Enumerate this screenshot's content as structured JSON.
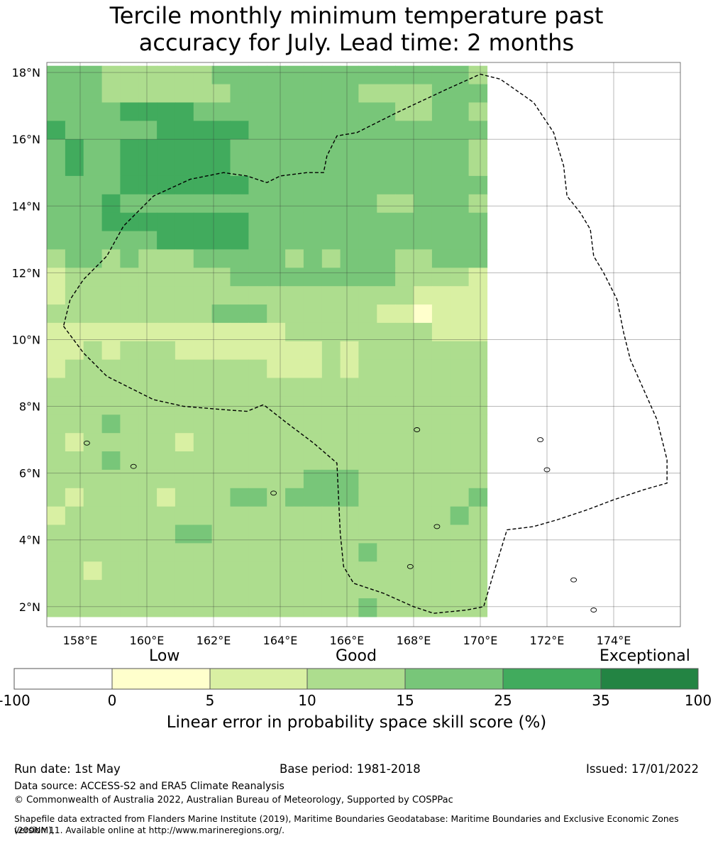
{
  "title": {
    "line1": "Tercile monthly minimum temperature past",
    "line2": "accuracy for July. Lead time: 2 months"
  },
  "map": {
    "lat_labels": [
      "18°N",
      "16°N",
      "14°N",
      "12°N",
      "10°N",
      "8°N",
      "6°N",
      "4°N",
      "2°N"
    ],
    "lon_labels": [
      "158°E",
      "160°E",
      "162°E",
      "164°E",
      "166°E",
      "168°E",
      "170°E",
      "172°E",
      "174°E"
    ],
    "lon_range": [
      157,
      176
    ],
    "lat_range": [
      1.4,
      18.3
    ],
    "grid_origin": {
      "lon": 157,
      "lat": 18.2,
      "step_deg": 0.55
    },
    "grid_levels": [
      "444333333444444444444443",
      "444333333344444443333444",
      "444455554444444444433443",
      "544444555554444444444444",
      "454455555544444444444443",
      "454455555544444444444443",
      "444455555554444444444444",
      "444544444444444444334443",
      "444555555554444444444444",
      "444444555554444444444444",
      "344343334444434344433444",
      "233333333344444444433332",
      "233333333333333333332222",
      "333333333444333333221222",
      "222222222222233333333222",
      "223233322222222323333333",
      "233333333333222323333333",
      "333333333333333333333333",
      "333333333333333333333333",
      "333433333333333333333333",
      "323333323333333333333333",
      "333433333333333333333333",
      "333333333333334443333333",
      "323333233344344443333334",
      "233333333333333333333343",
      "333333344333333333333333",
      "333333333333333334333333",
      "332333333333333333333333",
      "333333333333333333333333",
      "333333333333333334333333"
    ],
    "boundary_polygon": [
      [
        157.5,
        10.4
      ],
      [
        158.1,
        9.6
      ],
      [
        158.8,
        8.9
      ],
      [
        159.4,
        8.6
      ],
      [
        160.2,
        8.2
      ],
      [
        161.1,
        8.0
      ],
      [
        162.3,
        7.9
      ],
      [
        163.0,
        7.85
      ],
      [
        163.5,
        8.05
      ],
      [
        164.2,
        7.5
      ],
      [
        165.0,
        6.9
      ],
      [
        165.7,
        6.3
      ],
      [
        165.8,
        4.2
      ],
      [
        165.9,
        3.2
      ],
      [
        166.2,
        2.7
      ],
      [
        167.1,
        2.4
      ],
      [
        168.0,
        2.0
      ],
      [
        168.6,
        1.8
      ],
      [
        169.6,
        1.9
      ],
      [
        170.1,
        2.0
      ],
      [
        170.4,
        3.0
      ],
      [
        170.8,
        4.3
      ],
      [
        171.6,
        4.4
      ],
      [
        172.3,
        4.6
      ],
      [
        173.2,
        4.9
      ],
      [
        174.0,
        5.2
      ],
      [
        174.9,
        5.5
      ],
      [
        175.6,
        5.7
      ],
      [
        175.6,
        6.4
      ],
      [
        175.3,
        7.6
      ],
      [
        174.9,
        8.5
      ],
      [
        174.5,
        9.4
      ],
      [
        174.3,
        10.2
      ],
      [
        174.1,
        11.2
      ],
      [
        173.7,
        12.0
      ],
      [
        173.4,
        12.5
      ],
      [
        173.3,
        13.3
      ],
      [
        173.0,
        13.8
      ],
      [
        172.6,
        14.3
      ],
      [
        172.5,
        15.2
      ],
      [
        172.2,
        16.2
      ],
      [
        171.6,
        17.1
      ],
      [
        170.6,
        17.8
      ],
      [
        170.0,
        17.95
      ],
      [
        169.0,
        17.5
      ],
      [
        167.5,
        16.8
      ],
      [
        166.3,
        16.2
      ],
      [
        165.7,
        16.1
      ],
      [
        165.4,
        15.5
      ],
      [
        165.3,
        15.0
      ],
      [
        164.8,
        15.0
      ],
      [
        164.0,
        14.9
      ],
      [
        163.6,
        14.7
      ],
      [
        163.0,
        14.9
      ],
      [
        162.3,
        15.0
      ],
      [
        161.3,
        14.8
      ],
      [
        160.2,
        14.3
      ],
      [
        159.3,
        13.4
      ],
      [
        158.8,
        12.5
      ],
      [
        158.1,
        11.8
      ],
      [
        157.7,
        11.2
      ],
      [
        157.5,
        10.4
      ]
    ]
  },
  "colorbar": {
    "category_labels": [
      "Low",
      "Good",
      "Exceptional"
    ],
    "tick_labels": [
      "-100",
      "0",
      "5",
      "10",
      "15",
      "25",
      "35",
      "100"
    ],
    "colors": [
      "#ffffff",
      "#ffffcc",
      "#d9f0a3",
      "#addd8e",
      "#78c679",
      "#41ab5d",
      "#238443"
    ],
    "xlabel": "Linear error in probability space skill score (%)"
  },
  "footer": {
    "run_date": "Run date: 1st May",
    "base_period": "Base period: 1981-2018",
    "issued": "Issued: 17/01/2022",
    "data_source": "Data source: ACCESS-S2 and ERA5 Climate Reanalysis",
    "copyright": "© Commonwealth of Australia 2022, Australian Bureau of Meteorology, Supported by COSPPac",
    "shapefile_line1": "Shapefile data extracted from Flanders Marine Institute (2019), Maritime Boundaries Geodatabase: Maritime Boundaries and Exclusive Economic Zones (200NM),",
    "shapefile_line2": "version 11. Available online at http://www.marineregions.org/."
  }
}
